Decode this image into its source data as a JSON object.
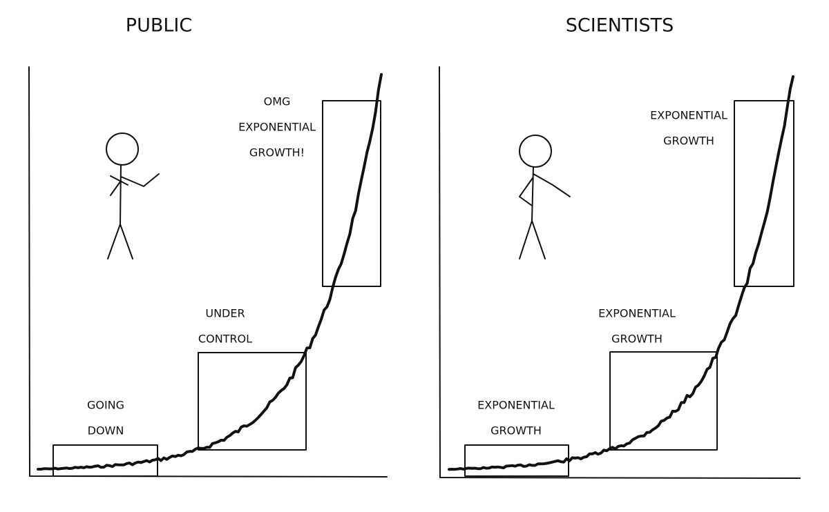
{
  "panels": [
    {
      "title": "PUBLIC",
      "labels": [
        {
          "lines": [
            "GOING",
            "DOWN"
          ]
        },
        {
          "lines": [
            "UNDER",
            "CONTROL"
          ]
        },
        {
          "lines": [
            "OMG",
            "EXPONENTIAL",
            "GROWTH!"
          ]
        }
      ]
    },
    {
      "title": "SCIENTISTS",
      "labels": [
        {
          "lines": [
            "EXPONENTIAL",
            "GROWTH"
          ]
        },
        {
          "lines": [
            "EXPONENTIAL",
            "GROWTH"
          ]
        },
        {
          "lines": [
            "EXPONENTIAL",
            "GROWTH"
          ]
        }
      ]
    }
  ]
}
